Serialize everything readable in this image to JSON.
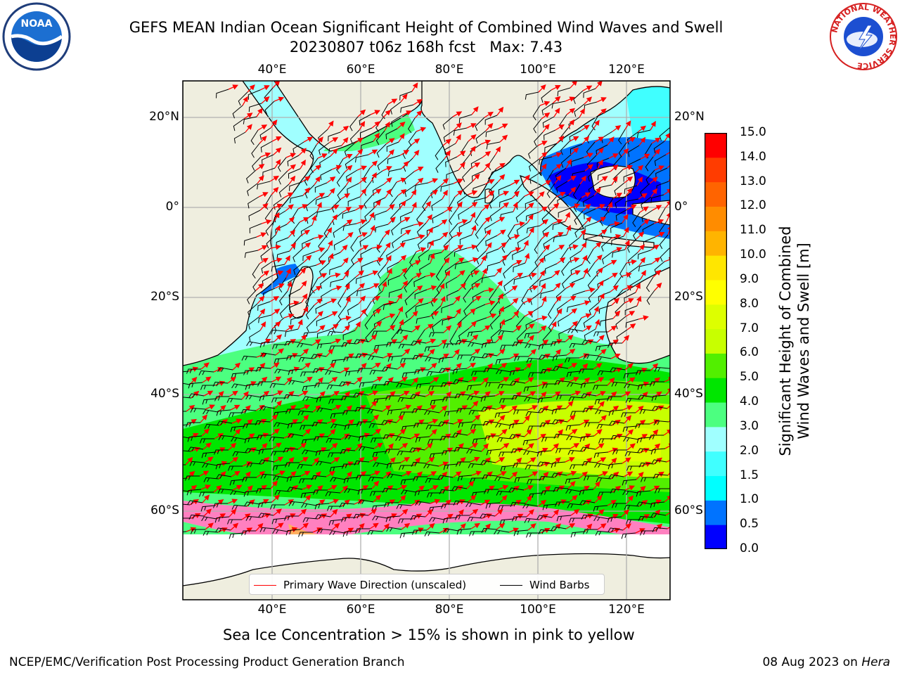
{
  "title": {
    "line1": "GEFS MEAN Indian Ocean Significant Height of Combined Wind Waves and Swell",
    "line2": "20230807 t06z 168h fcst   Max: 7.43"
  },
  "map": {
    "lon_labels": [
      "40°E",
      "60°E",
      "80°E",
      "100°E",
      "120°E"
    ],
    "lat_labels_left": [
      "20°N",
      "0°",
      "20°S",
      "40°S",
      "60°S"
    ],
    "lat_labels_right": [
      "20°N",
      "0°",
      "20°S",
      "40°S",
      "60°S"
    ],
    "legend": {
      "wave": "Primary Wave Direction (unscaled)",
      "wind": "Wind Barbs"
    },
    "colors": {
      "land": "#efeedf",
      "arrow": "#ff0000",
      "barb": "#000000",
      "grid": "#b0b0b0"
    }
  },
  "colorbar": {
    "title_line1": "Significant Height of Combined",
    "title_line2": "Wind Waves and Swell [m]",
    "tick_labels": [
      "0.0",
      "0.5",
      "1.0",
      "1.5",
      "2.0",
      "3.0",
      "4.0",
      "5.0",
      "6.0",
      "7.0",
      "8.0",
      "9.0",
      "10.0",
      "11.0",
      "12.0",
      "13.0",
      "14.0",
      "15.0"
    ],
    "colors": [
      "#0000ff",
      "#0073ff",
      "#00ffff",
      "#40ffff",
      "#a0ffff",
      "#4cff80",
      "#00e600",
      "#52ef00",
      "#c8ff00",
      "#ddff00",
      "#ffff00",
      "#ffe600",
      "#ffb400",
      "#ff8c00",
      "#ff6400",
      "#ff3c00",
      "#ff0000"
    ]
  },
  "caption": "Sea Ice Concentration > 15% is shown in pink to yellow",
  "footer": {
    "left": "NCEP/EMC/Verification Post Processing Product Generation Branch",
    "right_prefix": "08 Aug 2023 on ",
    "right_machine": "Hera"
  },
  "logos": {
    "noaa_text": "NOAA",
    "nws_ring_text": "NATIONAL WEATHER SERVICE"
  }
}
